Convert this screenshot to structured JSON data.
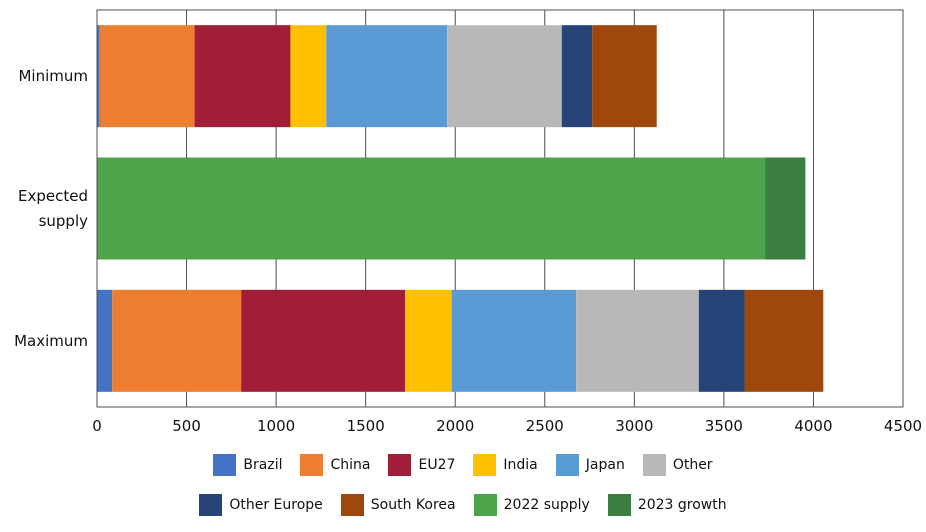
{
  "chart_data": {
    "type": "bar",
    "orientation": "horizontal",
    "stacked": true,
    "categories": [
      "Minimum",
      "Expected supply",
      "Maximum"
    ],
    "category_lines": [
      [
        "Minimum"
      ],
      [
        "Expected",
        "supply"
      ],
      [
        "Maximum"
      ]
    ],
    "series": [
      {
        "name": "Brazil",
        "color": "#4472C4",
        "values": [
          15,
          0,
          85
        ]
      },
      {
        "name": "China",
        "color": "#ED7D31",
        "values": [
          530,
          0,
          720
        ]
      },
      {
        "name": "EU27",
        "color": "#A21D37",
        "values": [
          535,
          0,
          915
        ]
      },
      {
        "name": "India",
        "color": "#FFC000",
        "values": [
          200,
          0,
          260
        ]
      },
      {
        "name": "Japan",
        "color": "#5B9BD5",
        "values": [
          675,
          0,
          695
        ]
      },
      {
        "name": "Other",
        "color": "#B8B8B8",
        "values": [
          640,
          0,
          685
        ]
      },
      {
        "name": "Other Europe",
        "color": "#264478",
        "values": [
          170,
          0,
          255
        ]
      },
      {
        "name": "South Korea",
        "color": "#9E480E",
        "values": [
          360,
          0,
          440
        ]
      },
      {
        "name": "2022 supply",
        "color": "#4EA44A",
        "values": [
          0,
          3730,
          0
        ]
      },
      {
        "name": "2023 growth",
        "color": "#3A7E40",
        "values": [
          0,
          225,
          0
        ]
      }
    ],
    "xlim": [
      0,
      4500
    ],
    "xticks": [
      0,
      500,
      1000,
      1500,
      2000,
      2500,
      3000,
      3500,
      4000,
      4500
    ],
    "xlabel": "",
    "ylabel": "",
    "title": "",
    "grid": "vertical",
    "legend_position": "bottom",
    "legend_rows": [
      [
        "Brazil",
        "China",
        "EU27",
        "India",
        "Japan",
        "Other"
      ],
      [
        "Other Europe",
        "South Korea",
        "2022 supply",
        "2023 growth"
      ]
    ]
  }
}
